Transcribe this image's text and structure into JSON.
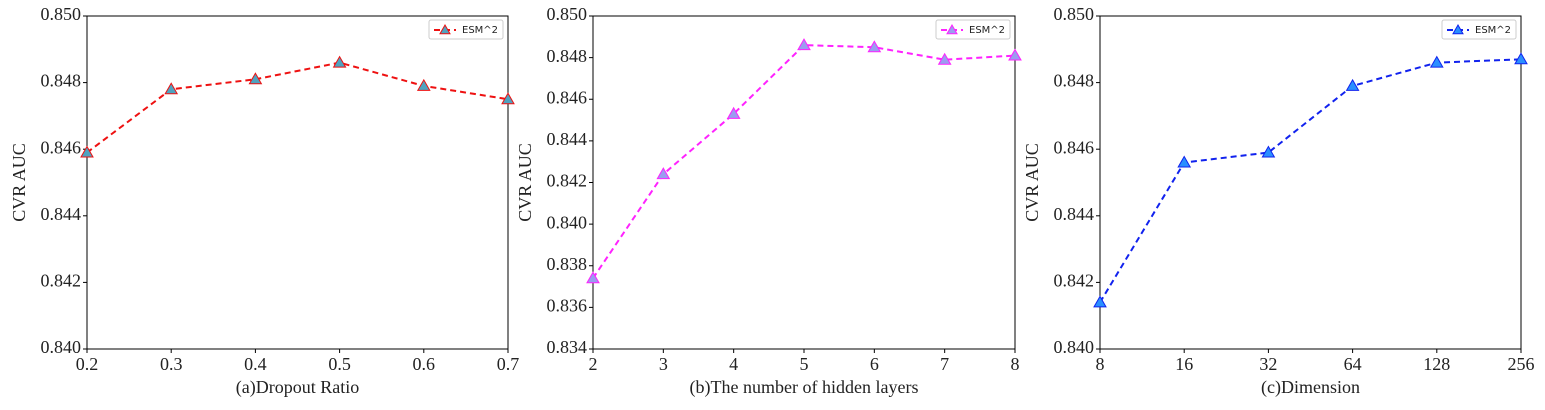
{
  "chart_data": [
    {
      "type": "line",
      "xlabel": "(a)Dropout Ratio",
      "ylabel": "CVR AUC",
      "x": [
        0.2,
        0.3,
        0.4,
        0.5,
        0.6,
        0.7
      ],
      "series": [
        {
          "name": "ESM^2",
          "color": "#ee1111",
          "marker_color": "#4fa3c0",
          "values": [
            0.8459,
            0.8478,
            0.8481,
            0.8486,
            0.8479,
            0.8475
          ]
        }
      ],
      "xlim": [
        0.2,
        0.7
      ],
      "xticks": [
        0.2,
        0.3,
        0.4,
        0.5,
        0.6,
        0.7
      ],
      "ylim": [
        0.84,
        0.85
      ],
      "yticks": [
        {
          "value": 0.84,
          "label": "0.840"
        },
        {
          "value": 0.842,
          "label": "0.842"
        },
        {
          "value": 0.844,
          "label": "0.844"
        },
        {
          "value": 0.846,
          "label": "0.846"
        },
        {
          "value": 0.848,
          "label": "0.848"
        },
        {
          "value": 0.85,
          "label": "0.850"
        }
      ],
      "legend": "upper right",
      "grid": false
    },
    {
      "type": "line",
      "xlabel": "(b)The number of hidden layers",
      "ylabel": "CVR AUC",
      "x": [
        2,
        3,
        4,
        5,
        6,
        7,
        8
      ],
      "series": [
        {
          "name": "ESM^2",
          "color": "#ff22ff",
          "marker_color": "#9b9cf0",
          "values": [
            0.8374,
            0.8424,
            0.8453,
            0.8486,
            0.8485,
            0.8479,
            0.8481
          ]
        }
      ],
      "xlim": [
        2,
        8
      ],
      "xticks": [
        2,
        3,
        4,
        5,
        6,
        7,
        8
      ],
      "ylim": [
        0.834,
        0.85
      ],
      "yticks": [
        {
          "value": 0.834,
          "label": "0.834"
        },
        {
          "value": 0.836,
          "label": "0.836"
        },
        {
          "value": 0.838,
          "label": "0.838"
        },
        {
          "value": 0.84,
          "label": "0.840"
        },
        {
          "value": 0.842,
          "label": "0.842"
        },
        {
          "value": 0.844,
          "label": "0.844"
        },
        {
          "value": 0.846,
          "label": "0.846"
        },
        {
          "value": 0.848,
          "label": "0.848"
        },
        {
          "value": 0.85,
          "label": "0.850"
        }
      ],
      "legend": "upper right",
      "grid": false
    },
    {
      "type": "line",
      "xlabel": "(c)Dimension",
      "ylabel": "CVR AUC",
      "x": [
        8,
        16,
        32,
        64,
        128,
        256
      ],
      "series": [
        {
          "name": "ESM^2",
          "color": "#1122ee",
          "marker_color": "#2a8fff",
          "values": [
            0.8414,
            0.8456,
            0.8459,
            0.8479,
            0.8486,
            0.8487
          ]
        }
      ],
      "xlim": [
        8,
        256
      ],
      "xticks": [
        8,
        16,
        32,
        64,
        128,
        256
      ],
      "xlog": true,
      "ylim": [
        0.84,
        0.85
      ],
      "yticks": [
        {
          "value": 0.84,
          "label": "0.840"
        },
        {
          "value": 0.842,
          "label": "0.842"
        },
        {
          "value": 0.844,
          "label": "0.844"
        },
        {
          "value": 0.846,
          "label": "0.846"
        },
        {
          "value": 0.848,
          "label": "0.848"
        },
        {
          "value": 0.85,
          "label": "0.850"
        }
      ],
      "legend": "upper right",
      "grid": false
    }
  ]
}
